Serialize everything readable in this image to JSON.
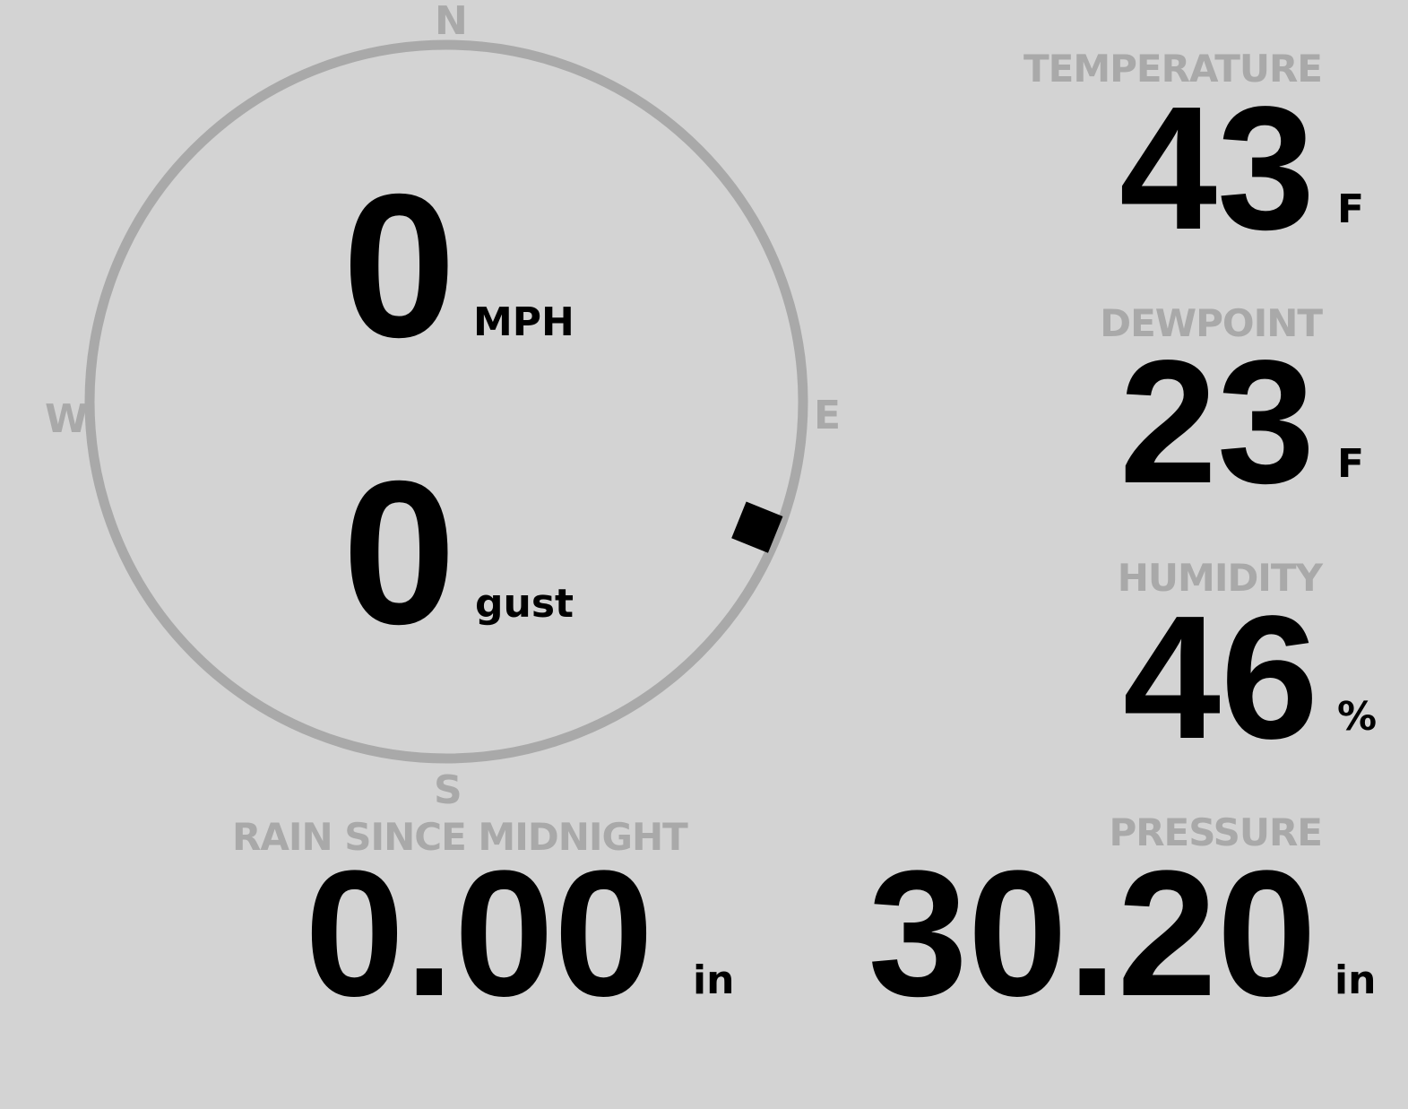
{
  "colors": {
    "background": "#d3d3d3",
    "label": "#a9a9a9",
    "value": "#000000",
    "compass_ring": "#a9a9a9"
  },
  "wind": {
    "compass": {
      "n": "N",
      "e": "E",
      "s": "S",
      "w": "W"
    },
    "direction_degrees": 112,
    "speed": "0",
    "speed_unit": "MPH",
    "gust": "0",
    "gust_unit": "gust"
  },
  "rain": {
    "label": "RAIN SINCE MIDNIGHT",
    "value": "0.00",
    "unit": "in"
  },
  "temperature": {
    "label": "TEMPERATURE",
    "value": "43",
    "unit": "F"
  },
  "dewpoint": {
    "label": "DEWPOINT",
    "value": "23",
    "unit": "F"
  },
  "humidity": {
    "label": "HUMIDITY",
    "value": "46",
    "unit": "%"
  },
  "pressure": {
    "label": "PRESSURE",
    "value": "30.20",
    "unit": "in"
  }
}
